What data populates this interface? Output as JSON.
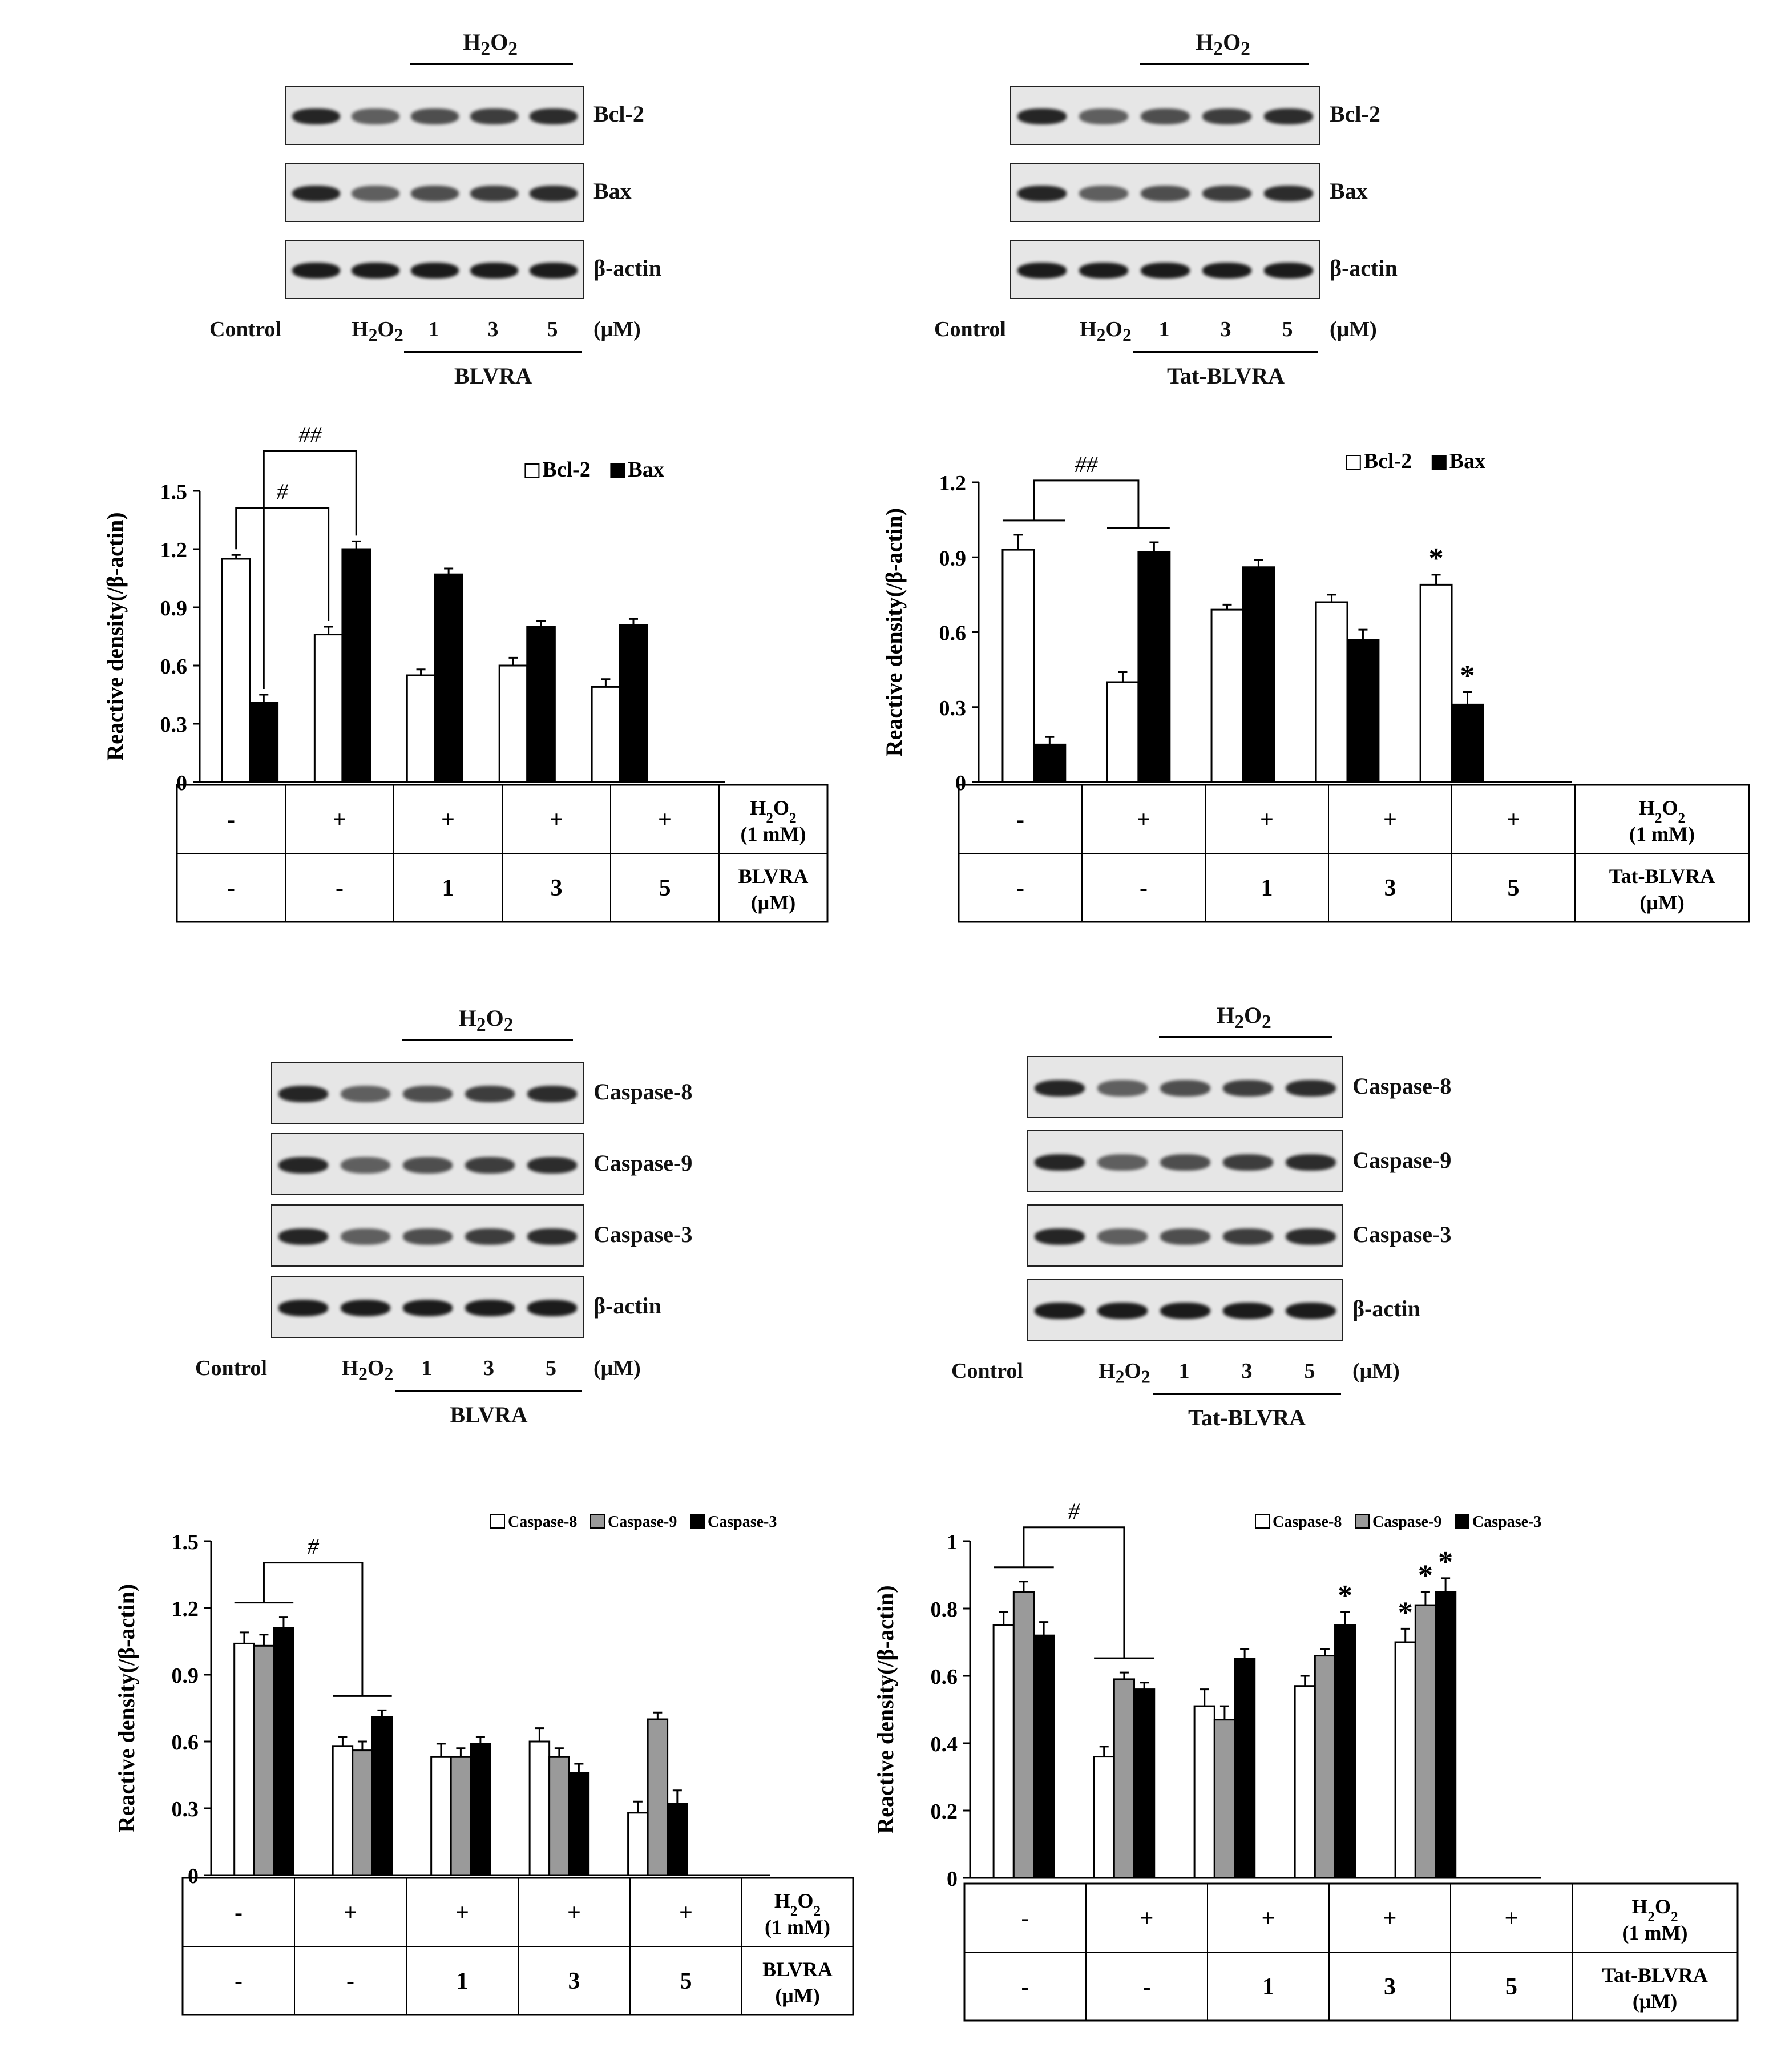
{
  "blots": [
    {
      "id": "bcl2-blvra",
      "top_label": "H2O2",
      "proteins": [
        "Bcl-2",
        "Bax",
        "β-actin"
      ],
      "lanes": [
        "Control",
        "H2O2",
        "1",
        "3",
        "5"
      ],
      "unit": "(μM)",
      "treatment": "BLVRA"
    },
    {
      "id": "bcl2-tat",
      "top_label": "H2O2",
      "proteins": [
        "Bcl-2",
        "Bax",
        "β-actin"
      ],
      "lanes": [
        "Control",
        "H2O2",
        "1",
        "3",
        "5"
      ],
      "unit": "(μM)",
      "treatment": "Tat-BLVRA"
    },
    {
      "id": "casp-blvra",
      "top_label": "H2O2",
      "proteins": [
        "Caspase-8",
        "Caspase-9",
        "Caspase-3",
        "β-actin"
      ],
      "lanes": [
        "Control",
        "H2O2",
        "1",
        "3",
        "5"
      ],
      "unit": "(μM)",
      "treatment": "BLVRA"
    },
    {
      "id": "casp-tat",
      "top_label": "H2O2",
      "proteins": [
        "Caspase-8",
        "Caspase-9",
        "Caspase-3",
        "β-actin"
      ],
      "lanes": [
        "Control",
        "H2O2",
        "1",
        "3",
        "5"
      ],
      "unit": "(μM)",
      "treatment": "Tat-BLVRA"
    }
  ],
  "chart_data": [
    {
      "type": "bar",
      "ylabel": "Reactive density(/β-actin)",
      "ylim": [
        0,
        1.5
      ],
      "yticks": [
        "0",
        "0.3",
        "0.6",
        "0.9",
        "1.2",
        "1.5"
      ],
      "legend_position": "top-right",
      "series": [
        {
          "name": "Bcl-2",
          "color": "#ffffff",
          "values": [
            1.15,
            0.76,
            0.55,
            0.6,
            0.49
          ],
          "errors": [
            0.02,
            0.04,
            0.03,
            0.04,
            0.04
          ]
        },
        {
          "name": "Bax",
          "color": "#000000",
          "values": [
            0.41,
            1.2,
            1.07,
            0.8,
            0.81
          ],
          "errors": [
            0.04,
            0.04,
            0.03,
            0.03,
            0.03
          ]
        }
      ],
      "significance": [
        {
          "label": "#",
          "groups": [
            0,
            1
          ],
          "series_a": 0,
          "series_b": 0,
          "level": 1
        },
        {
          "label": "##",
          "groups": [
            0,
            1
          ],
          "series_a": 1,
          "series_b": 1,
          "level": 2
        }
      ],
      "stars": [],
      "table": {
        "rows": [
          {
            "label": "H2O2 (1 mM)",
            "cells": [
              "-",
              "+",
              "+",
              "+",
              "+"
            ]
          },
          {
            "label": "BLVRA (μM)",
            "cells": [
              "-",
              "-",
              "1",
              "3",
              "5"
            ]
          }
        ]
      }
    },
    {
      "type": "bar",
      "ylabel": "Reactive density(/β-actin)",
      "ylim": [
        0,
        1.2
      ],
      "yticks": [
        "0",
        "0.3",
        "0.6",
        "0.9",
        "1.2"
      ],
      "legend_position": "top-right",
      "series": [
        {
          "name": "Bcl-2",
          "color": "#ffffff",
          "values": [
            0.93,
            0.4,
            0.69,
            0.72,
            0.79
          ],
          "errors": [
            0.06,
            0.04,
            0.02,
            0.03,
            0.04
          ]
        },
        {
          "name": "Bax",
          "color": "#000000",
          "values": [
            0.15,
            0.92,
            0.86,
            0.57,
            0.31
          ],
          "errors": [
            0.03,
            0.04,
            0.03,
            0.04,
            0.05
          ]
        }
      ],
      "significance": [
        {
          "label": "##",
          "groups": [
            0,
            1
          ],
          "bracket": "group",
          "level": 1
        }
      ],
      "stars": [
        {
          "group": 4,
          "series": 0,
          "label": "*"
        },
        {
          "group": 4,
          "series": 1,
          "label": "*"
        }
      ],
      "table": {
        "rows": [
          {
            "label": "H2O2 (1 mM)",
            "cells": [
              "-",
              "+",
              "+",
              "+",
              "+"
            ]
          },
          {
            "label": "Tat-BLVRA (μM)",
            "cells": [
              "-",
              "-",
              "1",
              "3",
              "5"
            ]
          }
        ]
      }
    },
    {
      "type": "bar",
      "ylabel": "Reactive density(/β-actin)",
      "ylim": [
        0,
        1.5
      ],
      "yticks": [
        "0",
        "0.3",
        "0.6",
        "0.9",
        "1.2",
        "1.5"
      ],
      "legend_position": "top-right",
      "series": [
        {
          "name": "Caspase-8",
          "color": "#ffffff",
          "values": [
            1.04,
            0.58,
            0.53,
            0.6,
            0.28
          ],
          "errors": [
            0.05,
            0.04,
            0.06,
            0.06,
            0.05
          ]
        },
        {
          "name": "Caspase-9",
          "color": "#9a9a9a",
          "values": [
            1.03,
            0.56,
            0.53,
            0.53,
            0.7
          ],
          "errors": [
            0.05,
            0.04,
            0.04,
            0.04,
            0.03
          ]
        },
        {
          "name": "Caspase-3",
          "color": "#000000",
          "values": [
            1.11,
            0.71,
            0.59,
            0.46,
            0.32
          ],
          "errors": [
            0.05,
            0.03,
            0.03,
            0.04,
            0.06
          ]
        }
      ],
      "significance": [
        {
          "label": "#",
          "groups": [
            0,
            1
          ],
          "bracket": "group",
          "level": 1
        }
      ],
      "stars": [],
      "table": {
        "rows": [
          {
            "label": "H2O2 (1 mM)",
            "cells": [
              "-",
              "+",
              "+",
              "+",
              "+"
            ]
          },
          {
            "label": "BLVRA (μM)",
            "cells": [
              "-",
              "-",
              "1",
              "3",
              "5"
            ]
          }
        ]
      }
    },
    {
      "type": "bar",
      "ylabel": "Reactive density(/β-actin)",
      "ylim": [
        0,
        1
      ],
      "yticks": [
        "0",
        "0.2",
        "0.4",
        "0.6",
        "0.8",
        "1"
      ],
      "legend_position": "top-right",
      "series": [
        {
          "name": "Caspase-8",
          "color": "#ffffff",
          "values": [
            0.75,
            0.36,
            0.51,
            0.57,
            0.7
          ],
          "errors": [
            0.04,
            0.03,
            0.05,
            0.03,
            0.04
          ]
        },
        {
          "name": "Caspase-9",
          "color": "#9a9a9a",
          "values": [
            0.85,
            0.59,
            0.47,
            0.66,
            0.81
          ],
          "errors": [
            0.03,
            0.02,
            0.04,
            0.02,
            0.04
          ]
        },
        {
          "name": "Caspase-3",
          "color": "#000000",
          "values": [
            0.72,
            0.56,
            0.65,
            0.75,
            0.85
          ],
          "errors": [
            0.04,
            0.02,
            0.03,
            0.04,
            0.04
          ]
        }
      ],
      "significance": [
        {
          "label": "#",
          "groups": [
            0,
            1
          ],
          "bracket": "group",
          "level": 1
        }
      ],
      "stars": [
        {
          "group": 3,
          "series": 2,
          "label": "*"
        },
        {
          "group": 4,
          "series": 0,
          "label": "*"
        },
        {
          "group": 4,
          "series": 1,
          "label": "*"
        },
        {
          "group": 4,
          "series": 2,
          "label": "*"
        }
      ],
      "table": {
        "rows": [
          {
            "label": "H2O2 (1 mM)",
            "cells": [
              "-",
              "+",
              "+",
              "+",
              "+"
            ]
          },
          {
            "label": "Tat-BLVRA (μM)",
            "cells": [
              "-",
              "-",
              "1",
              "3",
              "5"
            ]
          }
        ]
      }
    }
  ]
}
